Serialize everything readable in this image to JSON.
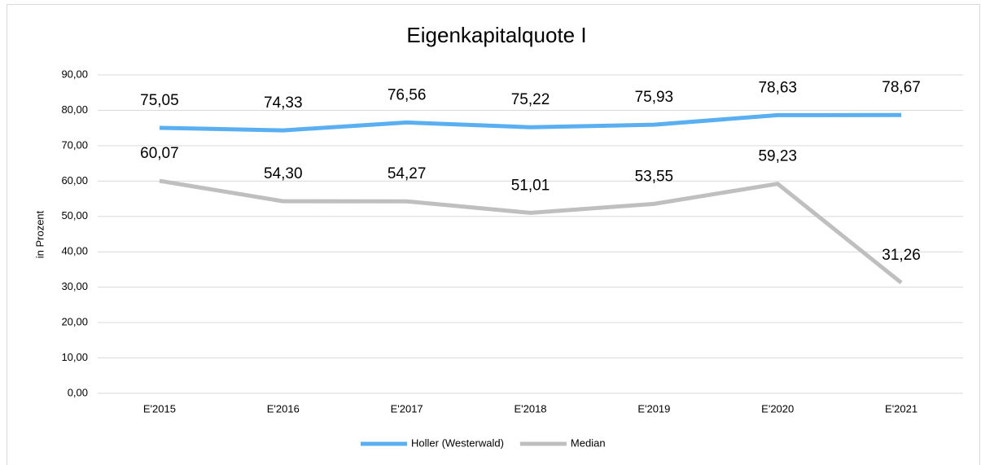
{
  "chart_data": {
    "type": "line",
    "title": "Eigenkapitalquote I",
    "y_label": "in Prozent",
    "categories": [
      "E'2015",
      "E'2016",
      "E'2017",
      "E'2018",
      "E'2019",
      "E'2020",
      "E'2021"
    ],
    "series": [
      {
        "name": "Holler (Westerwald)",
        "color": "#5aaff0",
        "values": [
          75.05,
          74.33,
          76.56,
          75.22,
          75.93,
          78.63,
          78.67
        ],
        "value_labels": [
          "75,05",
          "74,33",
          "76,56",
          "75,22",
          "75,93",
          "78,63",
          "78,67"
        ]
      },
      {
        "name": "Median",
        "color": "#bfbfbf",
        "values": [
          60.07,
          54.3,
          54.27,
          51.01,
          53.55,
          59.23,
          31.26
        ],
        "value_labels": [
          "60,07",
          "54,30",
          "54,27",
          "51,01",
          "53,55",
          "59,23",
          "31,26"
        ]
      }
    ],
    "ylim": [
      0,
      90
    ],
    "yticks": [
      {
        "value": 0,
        "label": "0,00"
      },
      {
        "value": 10,
        "label": "10,00"
      },
      {
        "value": 20,
        "label": "20,00"
      },
      {
        "value": 30,
        "label": "30,00"
      },
      {
        "value": 40,
        "label": "40,00"
      },
      {
        "value": 50,
        "label": "50,00"
      },
      {
        "value": 60,
        "label": "60,00"
      },
      {
        "value": 70,
        "label": "70,00"
      },
      {
        "value": 80,
        "label": "80,00"
      },
      {
        "value": 90,
        "label": "90,00"
      }
    ],
    "grid": true,
    "legend": "bottom"
  }
}
